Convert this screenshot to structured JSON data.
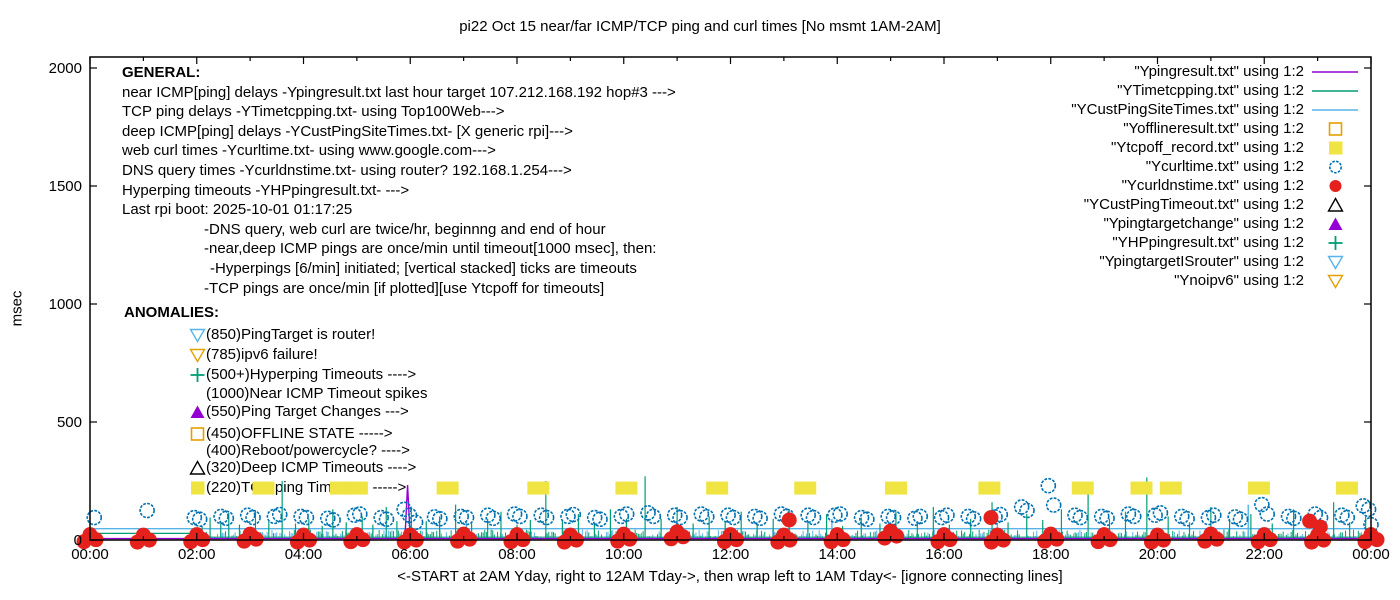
{
  "title": "pi22 Oct 15  near/far ICMP/TCP ping and curl times [No msmt 1AM-2AM]",
  "ylabel": "msec",
  "xlabel": "<-START at 2AM Yday, right to 12AM Tday->, then wrap left to 1AM Tday<- [ignore connecting lines]",
  "colors": {
    "purple": "#9400D3",
    "teal": "#009E73",
    "skyblue": "#56B4E9",
    "orange": "#E69F00",
    "yellow": "#F0E442",
    "blue": "#0072B2",
    "red": "#E4211C",
    "black": "#000000"
  },
  "general": {
    "header": "GENERAL:",
    "lines": [
      {
        "text": "near ICMP[ping] delays -Ypingresult.txt last hour target 107.212.168.192 hop#3 --->",
        "indent": 0
      },
      {
        "text": "TCP ping delays -YTimetcpping.txt- using Top100Web--->",
        "indent": 0
      },
      {
        "text": "deep ICMP[ping] delays -YCustPingSiteTimes.txt- [X generic rpi]--->",
        "indent": 0
      },
      {
        "text": "web curl times -Ycurltime.txt- using www.google.com--->",
        "indent": 0
      },
      {
        "text": "DNS query times -Ycurldnstime.txt- using router? 192.168.1.254--->",
        "indent": 0
      },
      {
        "text": "Hyperping timeouts -YHPpingresult.txt- --->",
        "indent": 0
      },
      {
        "text": "Last rpi boot: 2025-10-01 01:17:25",
        "indent": 0
      },
      {
        "text": "-DNS query, web curl are twice/hr, beginnng and end of hour",
        "indent": 1
      },
      {
        "text": "-near,deep ICMP pings are once/min until timeout[1000 msec], then:",
        "indent": 1
      },
      {
        "text": "-Hyperpings [6/min] initiated; [vertical stacked] ticks are timeouts",
        "indent": 2
      },
      {
        "text": "-TCP pings are once/min [if plotted][use Ytcpoff for timeouts]",
        "indent": 1
      }
    ]
  },
  "anomalies": {
    "header": "ANOMALIES:",
    "lines": [
      {
        "marker": "tri-down-open",
        "color": "#56B4E9",
        "text": "(850)PingTarget is router!",
        "y": 335
      },
      {
        "marker": "tri-down-open",
        "color": "#E69F00",
        "text": "(785)ipv6 failure!",
        "y": 355
      },
      {
        "marker": "plus",
        "color": "#009E73",
        "text": "(500+)Hyperping Timeouts ---->",
        "y": 375
      },
      {
        "marker": "none",
        "color": "#000000",
        "text": "(1000)Near ICMP Timeout spikes",
        "y": 394
      },
      {
        "marker": "tri-up-fill",
        "color": "#9400D3",
        "text": "(550)Ping Target Changes --->",
        "y": 412
      },
      {
        "marker": "square-open",
        "color": "#E69F00",
        "text": "(450)OFFLINE STATE ----->",
        "y": 434
      },
      {
        "marker": "none",
        "color": "#000000",
        "text": "(400)Reboot/powercycle? ---->",
        "y": 451
      },
      {
        "marker": "tri-up-open",
        "color": "#000000",
        "text": "(320)Deep ICMP Timeouts ---->",
        "y": 468
      },
      {
        "marker": "square-fill",
        "color": "#F0E442",
        "text": "(220)TCP ping Timeouts ----->",
        "y": 488
      }
    ]
  },
  "legend": {
    "entries": [
      {
        "label": "\"Ypingresult.txt\" using 1:2",
        "sample": "line",
        "color": "#9400D3"
      },
      {
        "label": "\"YTimetcpping.txt\" using 1:2",
        "sample": "line",
        "color": "#009E73"
      },
      {
        "label": "\"YCustPingSiteTimes.txt\" using 1:2",
        "sample": "line",
        "color": "#56B4E9"
      },
      {
        "label": "\"Yofflineresult.txt\" using 1:2",
        "sample": "square-open",
        "color": "#E69F00"
      },
      {
        "label": "\"Ytcpoff_record.txt\" using 1:2",
        "sample": "square-fill",
        "color": "#F0E442"
      },
      {
        "label": "\"Ycurltime.txt\" using 1:2",
        "sample": "circle-open",
        "color": "#0072B2"
      },
      {
        "label": "\"Ycurldnstime.txt\" using 1:2",
        "sample": "circle-fill",
        "color": "#E4211C"
      },
      {
        "label": "\"YCustPingTimeout.txt\" using 1:2",
        "sample": "tri-up-open",
        "color": "#000000"
      },
      {
        "label": "\"Ypingtargetchange\" using 1:2",
        "sample": "tri-up-fill",
        "color": "#9400D3"
      },
      {
        "label": "\"YHPpingresult.txt\" using 1:2",
        "sample": "plus",
        "color": "#009E73"
      },
      {
        "label": "\"YpingtargetISrouter\" using 1:2",
        "sample": "tri-down-open",
        "color": "#56B4E9"
      },
      {
        "label": "\"Ynoipv6\" using 1:2",
        "sample": "tri-down-open",
        "color": "#E69F00"
      }
    ]
  },
  "chart_data": {
    "type": "line",
    "x_unit": "hour-of-day",
    "xlim": [
      0,
      24
    ],
    "ylim": [
      0,
      2047
    ],
    "grid": false,
    "x_tick_hours": [
      0,
      2,
      4,
      6,
      8,
      10,
      12,
      14,
      16,
      18,
      20,
      22,
      24
    ],
    "x_tick_labels": [
      "00:00",
      "02:00",
      "04:00",
      "06:00",
      "08:00",
      "10:00",
      "12:00",
      "14:00",
      "16:00",
      "18:00",
      "20:00",
      "22:00",
      "00:00"
    ],
    "y_ticks": [
      0,
      500,
      1000,
      1500,
      2000
    ],
    "series": {
      "ypingresult_line": {
        "color": "#9400D3",
        "points": [
          [
            0,
            6
          ],
          [
            5.9,
            6
          ],
          [
            5.95,
            233
          ],
          [
            6.0,
            6
          ],
          [
            24,
            6
          ]
        ]
      },
      "ytimetcpping_line": {
        "color": "#009E73",
        "flat_segment": [
          [
            0,
            28
          ],
          [
            2,
            28
          ]
        ],
        "baseline": [
          [
            2,
            12
          ],
          [
            24,
            12
          ]
        ],
        "spikes": [
          [
            2.1,
            60
          ],
          [
            2.25,
            95
          ],
          [
            2.45,
            70
          ],
          [
            2.6,
            115
          ],
          [
            2.8,
            65
          ],
          [
            3.1,
            125
          ],
          [
            3.35,
            80
          ],
          [
            3.6,
            250
          ],
          [
            3.85,
            70
          ],
          [
            4.1,
            90
          ],
          [
            4.35,
            60
          ],
          [
            4.55,
            130
          ],
          [
            4.8,
            75
          ],
          [
            5.1,
            100
          ],
          [
            5.3,
            65
          ],
          [
            5.55,
            140
          ],
          [
            5.75,
            80
          ],
          [
            6.02,
            120
          ],
          [
            6.3,
            80
          ],
          [
            6.55,
            100
          ],
          [
            6.85,
            150
          ],
          [
            7.15,
            70
          ],
          [
            7.45,
            90
          ],
          [
            7.7,
            120
          ],
          [
            8.0,
            65
          ],
          [
            8.25,
            85
          ],
          [
            8.54,
            250
          ],
          [
            8.85,
            80
          ],
          [
            9.15,
            110
          ],
          [
            9.45,
            70
          ],
          [
            9.75,
            130
          ],
          [
            10.05,
            90
          ],
          [
            10.4,
            270
          ],
          [
            10.7,
            90
          ],
          [
            11.0,
            140
          ],
          [
            11.3,
            70
          ],
          [
            11.6,
            100
          ],
          [
            11.9,
            80
          ],
          [
            12.2,
            120
          ],
          [
            12.5,
            65
          ],
          [
            12.8,
            90
          ],
          [
            13.1,
            130
          ],
          [
            13.45,
            75
          ],
          [
            13.8,
            110
          ],
          [
            14.1,
            60
          ],
          [
            14.45,
            95
          ],
          [
            14.8,
            70
          ],
          [
            15.1,
            120
          ],
          [
            15.5,
            80
          ],
          [
            15.8,
            140
          ],
          [
            16.1,
            65
          ],
          [
            16.5,
            90
          ],
          [
            16.9,
            160
          ],
          [
            17.2,
            75
          ],
          [
            17.55,
            110
          ],
          [
            17.85,
            85
          ],
          [
            18.2,
            130
          ],
          [
            18.7,
            205
          ],
          [
            19.1,
            90
          ],
          [
            19.4,
            120
          ],
          [
            19.8,
            265
          ],
          [
            20.2,
            100
          ],
          [
            20.6,
            75
          ],
          [
            21.0,
            140
          ],
          [
            21.35,
            90
          ],
          [
            21.75,
            110
          ],
          [
            22.15,
            70
          ],
          [
            22.55,
            130
          ],
          [
            22.95,
            90
          ],
          [
            23.3,
            160
          ],
          [
            23.6,
            75
          ],
          [
            23.9,
            100
          ]
        ]
      },
      "ycustpingsitetimes_line": {
        "color": "#56B4E9",
        "flat_segment": [
          [
            0,
            48
          ],
          [
            24,
            48
          ]
        ],
        "spikes": [
          [
            7.05,
            80
          ],
          [
            13.9,
            90
          ],
          [
            17.0,
            70
          ],
          [
            21.7,
            150
          ],
          [
            23.05,
            90
          ]
        ]
      },
      "noise_band": {
        "comment": "dense per-minute near/deep ICMP ping times 2h-24h",
        "from_hour": 2,
        "to_hour": 24,
        "vmin": 4,
        "vmax": 44,
        "colors": [
          "#009E73",
          "#56B4E9"
        ]
      },
      "ytcpoff_squares": {
        "color": "#F0E442",
        "value": 220,
        "hours": [
          3.25,
          4.7,
          5.0,
          6.7,
          8.4,
          10.05,
          11.75,
          13.4,
          15.1,
          16.85,
          18.6,
          19.7,
          20.25,
          21.9,
          23.55
        ]
      },
      "ycurltime_circles": {
        "color": "#0072B2",
        "slots": [
          [
            0.08,
            95,
            0
          ],
          [
            1.07,
            125,
            0
          ],
          [
            2.0,
            95,
            88
          ],
          [
            2.5,
            100,
            92
          ],
          [
            3.0,
            105,
            95
          ],
          [
            3.5,
            100,
            108
          ],
          [
            4.0,
            100,
            95
          ],
          [
            4.5,
            92,
            85
          ],
          [
            5.0,
            105,
            110
          ],
          [
            5.5,
            95,
            88
          ],
          [
            5.93,
            130,
            105
          ],
          [
            6.1,
            75,
            0
          ],
          [
            6.5,
            98,
            90
          ],
          [
            7.0,
            100,
            95
          ],
          [
            7.5,
            105,
            92
          ],
          [
            8.0,
            110,
            100
          ],
          [
            8.5,
            105,
            95
          ],
          [
            9.0,
            100,
            108
          ],
          [
            9.5,
            95,
            88
          ],
          [
            10.0,
            100,
            110
          ],
          [
            10.5,
            115,
            100
          ],
          [
            11.0,
            105,
            95
          ],
          [
            11.5,
            110,
            98
          ],
          [
            12.0,
            105,
            95
          ],
          [
            12.5,
            100,
            92
          ],
          [
            13.0,
            110,
            100
          ],
          [
            13.5,
            105,
            95
          ],
          [
            14.0,
            105,
            110
          ],
          [
            14.5,
            95,
            88
          ],
          [
            15.0,
            100,
            95
          ],
          [
            15.5,
            92,
            100
          ],
          [
            16.0,
            95,
            105
          ],
          [
            16.5,
            100,
            90
          ],
          [
            17.0,
            98,
            108
          ],
          [
            17.5,
            140,
            125
          ],
          [
            18.0,
            230,
            148
          ],
          [
            18.5,
            105,
            95
          ],
          [
            19.0,
            100,
            92
          ],
          [
            19.5,
            110,
            100
          ],
          [
            20.0,
            105,
            115
          ],
          [
            20.5,
            100,
            90
          ],
          [
            21.0,
            95,
            105
          ],
          [
            21.5,
            98,
            88
          ],
          [
            22.0,
            150,
            110
          ],
          [
            22.5,
            100,
            92
          ],
          [
            23.0,
            110,
            95
          ],
          [
            23.5,
            105,
            95
          ],
          [
            23.9,
            145,
            130
          ],
          [
            24.0,
            65,
            0
          ]
        ]
      },
      "ycurldnstime_dots": {
        "color": "#E4211C",
        "hourly": [
          [
            0,
            10
          ],
          [
            1,
            8
          ],
          [
            2,
            10
          ],
          [
            3,
            12
          ],
          [
            4,
            8
          ],
          [
            5,
            10
          ],
          [
            6,
            8
          ],
          [
            7,
            12
          ],
          [
            8,
            10
          ],
          [
            9,
            8
          ],
          [
            10,
            12
          ],
          [
            11,
            22
          ],
          [
            12,
            10
          ],
          [
            13,
            8
          ],
          [
            14,
            10
          ],
          [
            15,
            25
          ],
          [
            16,
            10
          ],
          [
            17,
            8
          ],
          [
            18,
            12
          ],
          [
            19,
            10
          ],
          [
            20,
            8
          ],
          [
            21,
            12
          ],
          [
            22,
            10
          ],
          [
            23,
            8
          ],
          [
            24,
            10
          ]
        ],
        "raised": [
          [
            13.1,
            85
          ],
          [
            16.88,
            95
          ],
          [
            22.85,
            80
          ],
          [
            23.05,
            55
          ]
        ]
      }
    }
  }
}
